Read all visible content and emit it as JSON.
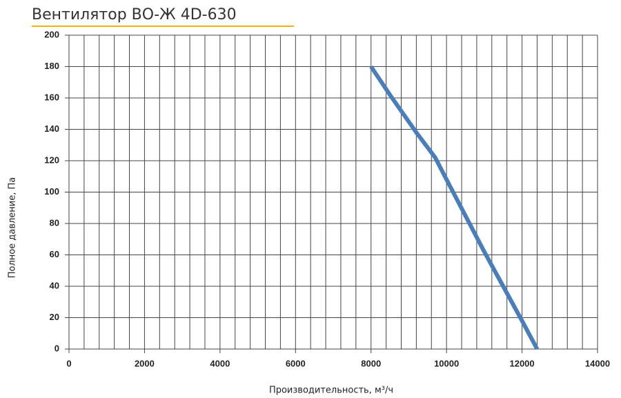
{
  "chart_data": {
    "type": "line",
    "title": "Вентилятор ВО-Ж 4D-630",
    "x_label": "Производительность, м³/ч",
    "y_label": "Полное давление, Па",
    "x": [
      8000,
      8500,
      9200,
      9700,
      10000,
      10500,
      11000,
      11500,
      12000,
      12400
    ],
    "series": [
      {
        "name": "ВО-Ж 4D-630",
        "color": "#4a7ebb",
        "values": [
          180,
          162,
          138,
          122,
          108,
          85,
          62,
          40,
          18,
          0
        ]
      }
    ],
    "xlim": [
      0,
      14000
    ],
    "xticks": [
      0,
      2000,
      4000,
      6000,
      8000,
      10000,
      12000,
      14000
    ],
    "xgrid": [
      0,
      400,
      800,
      1200,
      1600,
      2000,
      2400,
      2800,
      3200,
      3600,
      4000,
      4400,
      4800,
      5200,
      5600,
      6000,
      6400,
      6800,
      7200,
      7600,
      8000,
      8400,
      8800,
      9200,
      9600,
      10000,
      10400,
      10800,
      11200,
      11600,
      12000,
      12400,
      12800,
      13200,
      13600,
      14000
    ],
    "ylim": [
      0,
      200
    ],
    "yticks": [
      0,
      20,
      40,
      60,
      80,
      100,
      120,
      140,
      160,
      180,
      200
    ],
    "grid": true
  }
}
